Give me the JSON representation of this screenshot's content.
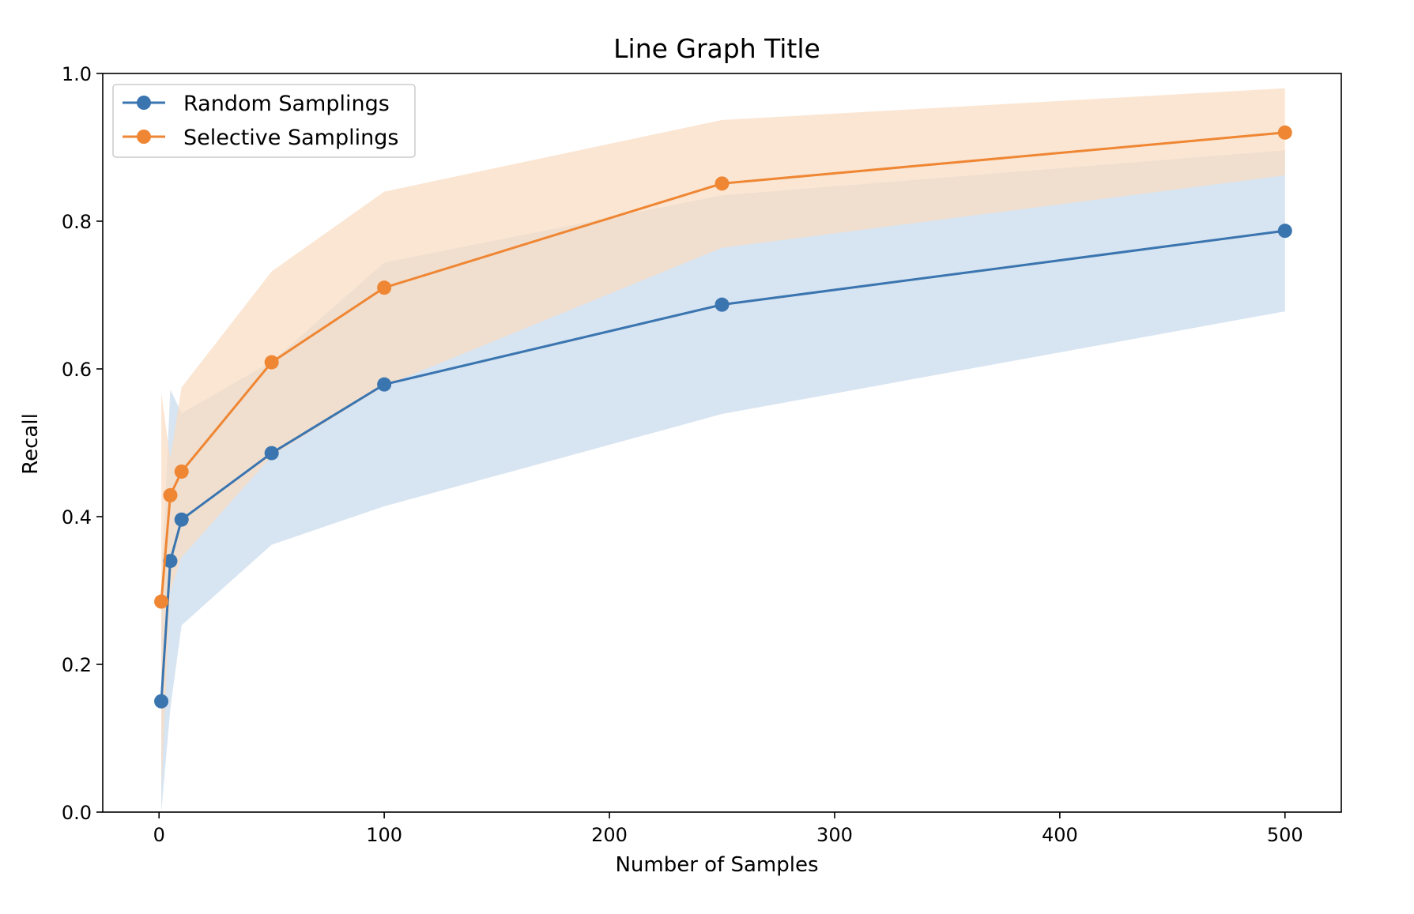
{
  "chart_data": {
    "type": "line",
    "title": "Line Graph Title",
    "xlabel": "Number of Samples",
    "ylabel": "Recall",
    "xlim": [
      -25,
      525
    ],
    "ylim": [
      0.0,
      1.0
    ],
    "x_ticks": [
      0,
      100,
      200,
      300,
      400,
      500
    ],
    "x_tick_labels": [
      "0",
      "100",
      "200",
      "300",
      "400",
      "500"
    ],
    "y_ticks": [
      0.0,
      0.2,
      0.4,
      0.6,
      0.8,
      1.0
    ],
    "y_tick_labels": [
      "0.0",
      "0.2",
      "0.4",
      "0.6",
      "0.8",
      "1.0"
    ],
    "grid": false,
    "legend_position": "top-left",
    "x": [
      1,
      5,
      10,
      50,
      100,
      250,
      500
    ],
    "series": [
      {
        "name": "Random Samplings",
        "color": "#3a75b0",
        "band_color": "#c7d9ec",
        "marker": "circle",
        "values": [
          0.15,
          0.34,
          0.396,
          0.486,
          0.579,
          0.687,
          0.787
        ],
        "lower": [
          0.0,
          0.14,
          0.253,
          0.362,
          0.414,
          0.539,
          0.678
        ],
        "upper": [
          0.3,
          0.572,
          0.54,
          0.61,
          0.744,
          0.835,
          0.896
        ]
      },
      {
        "name": "Selective Samplings",
        "color": "#ef8633",
        "band_color": "#f9dcc2",
        "marker": "circle",
        "values": [
          0.285,
          0.429,
          0.461,
          0.609,
          0.71,
          0.851,
          0.92
        ],
        "lower": [
          0.03,
          0.3,
          0.345,
          0.482,
          0.577,
          0.764,
          0.862
        ],
        "upper": [
          0.568,
          0.478,
          0.575,
          0.732,
          0.84,
          0.937,
          0.98
        ]
      }
    ]
  }
}
